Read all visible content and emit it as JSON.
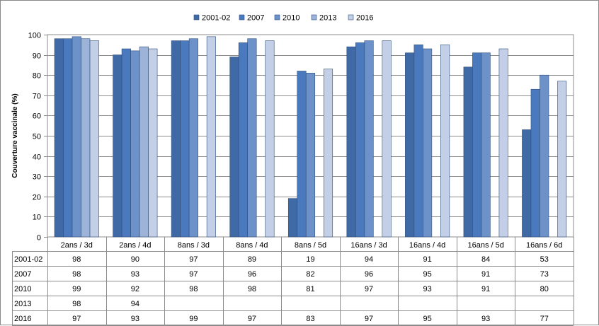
{
  "chart_data": {
    "type": "bar",
    "title": "",
    "xlabel": "",
    "ylabel": "Couverture vaccinale  (%)",
    "ylim": [
      0,
      100
    ],
    "yticks": [
      0,
      10,
      20,
      30,
      40,
      50,
      60,
      70,
      80,
      90,
      100
    ],
    "grid": true,
    "legend_position": "top",
    "categories": [
      "2ans / 3d",
      "2ans / 4d",
      "8ans / 3d",
      "8ans / 4d",
      "8ans / 5d",
      "16ans / 3d",
      "16ans / 4d",
      "16ans / 5d",
      "16ans / 6d"
    ],
    "series": [
      {
        "name": "2001-02",
        "color": "#3F6AA5",
        "values": [
          98,
          90,
          97,
          89,
          19,
          94,
          91,
          84,
          53
        ],
        "labels": [
          "98",
          "90",
          "97",
          "89",
          "19",
          "94",
          "91",
          "84",
          "53"
        ]
      },
      {
        "name": "2007",
        "color": "#4A79BD",
        "values": [
          98,
          93,
          97,
          96,
          82,
          96,
          95,
          91,
          73
        ],
        "labels": [
          "98",
          "93",
          "97",
          "96",
          "82",
          "96",
          "95",
          "91",
          "73"
        ]
      },
      {
        "name": "2010",
        "color": "#6D92C9",
        "values": [
          99,
          92,
          98,
          98,
          81,
          97,
          93,
          91,
          80
        ],
        "labels": [
          "99",
          "92",
          "98",
          "98",
          "81",
          "97",
          "93",
          "91",
          "80"
        ]
      },
      {
        "name": "2013",
        "color": "#9DB3D8",
        "values": [
          98,
          94,
          null,
          null,
          null,
          null,
          null,
          null,
          null
        ],
        "labels": [
          "98",
          "94",
          "",
          "",
          "",
          "",
          "",
          "",
          ""
        ]
      },
      {
        "name": "2016",
        "color": "#C3CFE7",
        "values": [
          97,
          93,
          99,
          97,
          83,
          97,
          95,
          93,
          77
        ],
        "labels": [
          "97",
          "93",
          "99",
          "97",
          "83",
          "97",
          "95",
          "93",
          "77"
        ]
      }
    ]
  }
}
